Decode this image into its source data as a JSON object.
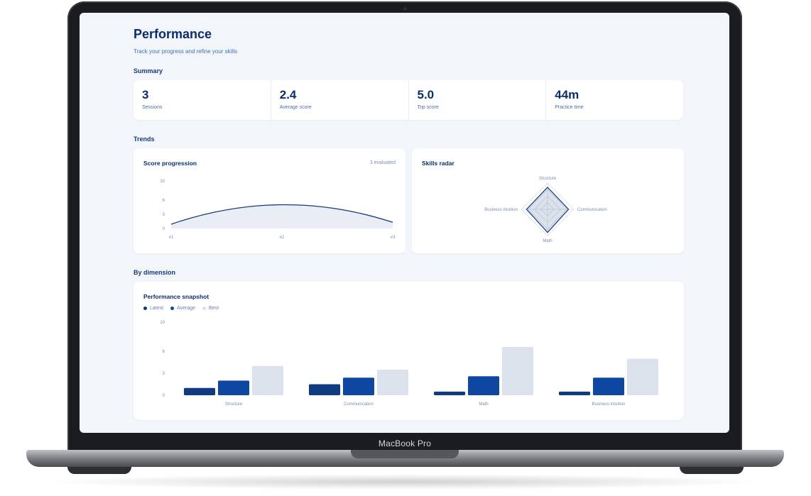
{
  "device": {
    "label": "MacBook Pro"
  },
  "page": {
    "title": "Performance",
    "subtitle": "Track your progress and refine your skills"
  },
  "sections": {
    "summary": "Summary",
    "trends": "Trends",
    "dimension": "By dimension"
  },
  "summary": [
    {
      "value": "3",
      "label": "Sessions"
    },
    {
      "value": "2.4",
      "label": "Average score"
    },
    {
      "value": "5.0",
      "label": "Top score"
    },
    {
      "value": "44m",
      "label": "Practice time"
    }
  ],
  "score_progression": {
    "title": "Score progression",
    "note": "3 evaluated"
  },
  "skills_radar": {
    "title": "Skills radar"
  },
  "snapshot": {
    "title": "Performance snapshot",
    "legend": [
      "Latest",
      "Average",
      "Best"
    ]
  },
  "colors": {
    "latest": "#0f3b82",
    "average": "#0d47a1",
    "best": "#dbe2ec",
    "line": "#173a7a",
    "area": "#e9edf6"
  },
  "chart_data": [
    {
      "type": "area",
      "title": "Score progression",
      "x": [
        "#1",
        "#2",
        "#3"
      ],
      "series": [
        {
          "values": [
            0.9,
            5.0,
            1.3
          ]
        }
      ],
      "yticks": [
        "0",
        "3",
        "6",
        "10"
      ],
      "ylim": [
        0,
        10
      ]
    },
    {
      "type": "radar",
      "title": "Skills radar",
      "axes": [
        "Structure",
        "Communication",
        "Math",
        "Business intuition"
      ],
      "values": [
        2.1,
        2.0,
        2.2,
        2.0
      ],
      "max": 10
    },
    {
      "type": "bar",
      "title": "Performance snapshot",
      "categories": [
        "Structure",
        "Communication",
        "Math",
        "Business intuition"
      ],
      "series": [
        {
          "name": "Latest",
          "values": [
            1.0,
            1.5,
            0.5,
            0.5
          ]
        },
        {
          "name": "Average",
          "values": [
            2.0,
            2.4,
            2.6,
            2.4
          ]
        },
        {
          "name": "Best",
          "values": [
            4.0,
            3.5,
            6.6,
            5.0
          ]
        }
      ],
      "yticks": [
        "0",
        "3",
        "6",
        "10"
      ],
      "ylim": [
        0,
        10
      ],
      "legend": "top-left"
    }
  ]
}
